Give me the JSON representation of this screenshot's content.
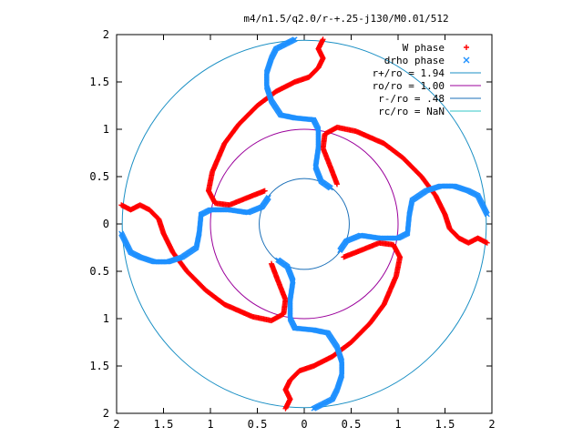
{
  "chart_data": {
    "type": "scatter",
    "title": "m4/n1.5/q2.0/r-+.25-j130/M0.01/512",
    "xlabel": "",
    "ylabel": "",
    "xlim": [
      -2,
      2
    ],
    "ylim": [
      -2,
      2
    ],
    "x_tick_labels": [
      "2",
      "1.5",
      "1",
      "0.5",
      "0",
      "0.5",
      "1",
      "1.5",
      "2"
    ],
    "y_tick_labels": [
      "2",
      "1.5",
      "1",
      "0.5",
      "0",
      "0.5",
      "1",
      "1.5",
      "2"
    ],
    "grid": false,
    "legend_position": "top-right",
    "circles": [
      {
        "name": "r+/ro = 1.94",
        "radius": 1.94,
        "color": "#1a8fc4"
      },
      {
        "name": "ro/ro = 1.00",
        "radius": 1.0,
        "color": "#9b009b"
      },
      {
        "name": "r-/ro = .48",
        "radius": 0.48,
        "color": "#1a6fb8"
      },
      {
        "name": "rc/ro = NaN",
        "radius": null,
        "color": "#33c7c7"
      }
    ],
    "series": [
      {
        "name": "W phase",
        "marker": "+",
        "color": "#ff0000",
        "arm_points": [
          [
            0.2,
            1.95
          ],
          [
            0.15,
            1.85
          ],
          [
            0.2,
            1.75
          ],
          [
            0.15,
            1.65
          ],
          [
            0.05,
            1.55
          ],
          [
            -0.1,
            1.5
          ],
          [
            -0.3,
            1.4
          ],
          [
            -0.5,
            1.25
          ],
          [
            -0.7,
            1.05
          ],
          [
            -0.85,
            0.85
          ],
          [
            -0.98,
            0.55
          ],
          [
            -1.02,
            0.35
          ],
          [
            -0.95,
            0.22
          ],
          [
            -0.8,
            0.2
          ],
          [
            -0.6,
            0.28
          ],
          [
            -0.42,
            0.35
          ]
        ]
      },
      {
        "name": "drho phase",
        "marker": "x",
        "color": "#1e90ff",
        "arm_points": [
          [
            -0.1,
            1.95
          ],
          [
            -0.3,
            1.85
          ],
          [
            -0.35,
            1.75
          ],
          [
            -0.4,
            1.6
          ],
          [
            -0.4,
            1.45
          ],
          [
            -0.35,
            1.3
          ],
          [
            -0.25,
            1.15
          ],
          [
            -0.1,
            1.12
          ],
          [
            0.1,
            1.1
          ],
          [
            0.15,
            1.0
          ],
          [
            0.15,
            0.8
          ],
          [
            0.12,
            0.6
          ],
          [
            0.18,
            0.45
          ],
          [
            0.28,
            0.38
          ]
        ]
      }
    ]
  }
}
